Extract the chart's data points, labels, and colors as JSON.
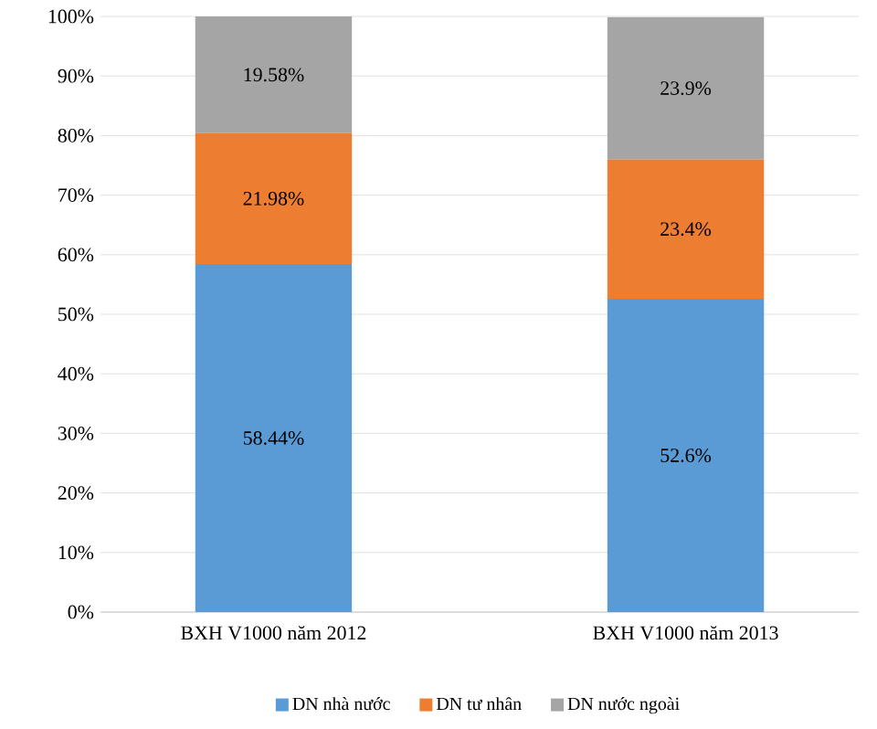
{
  "chart_data": {
    "type": "bar",
    "stacked": true,
    "categories": [
      "BXH V1000 năm 2012",
      "BXH V1000 năm 2013"
    ],
    "series": [
      {
        "name": "DN nhà nước",
        "color": "#5b9bd5",
        "values": [
          58.44,
          52.6
        ],
        "value_labels": [
          "58.44%",
          "52.6%"
        ]
      },
      {
        "name": "DN tư nhân",
        "color": "#ed7d31",
        "values": [
          21.98,
          23.4
        ],
        "value_labels": [
          "21.98%",
          "23.4%"
        ]
      },
      {
        "name": "DN nước ngoài",
        "color": "#a5a5a5",
        "values": [
          19.58,
          23.9
        ],
        "value_labels": [
          "19.58%",
          "23.9%"
        ]
      }
    ],
    "ylim": [
      0,
      100
    ],
    "yticks": [
      {
        "value": 0,
        "label": "0%"
      },
      {
        "value": 10,
        "label": "10%"
      },
      {
        "value": 20,
        "label": "20%"
      },
      {
        "value": 30,
        "label": "30%"
      },
      {
        "value": 40,
        "label": "40%"
      },
      {
        "value": 50,
        "label": "50%"
      },
      {
        "value": 60,
        "label": "60%"
      },
      {
        "value": 70,
        "label": "70%"
      },
      {
        "value": 80,
        "label": "80%"
      },
      {
        "value": 90,
        "label": "90%"
      },
      {
        "value": 100,
        "label": "100%"
      }
    ],
    "grid": "y",
    "legend": "bottom"
  }
}
